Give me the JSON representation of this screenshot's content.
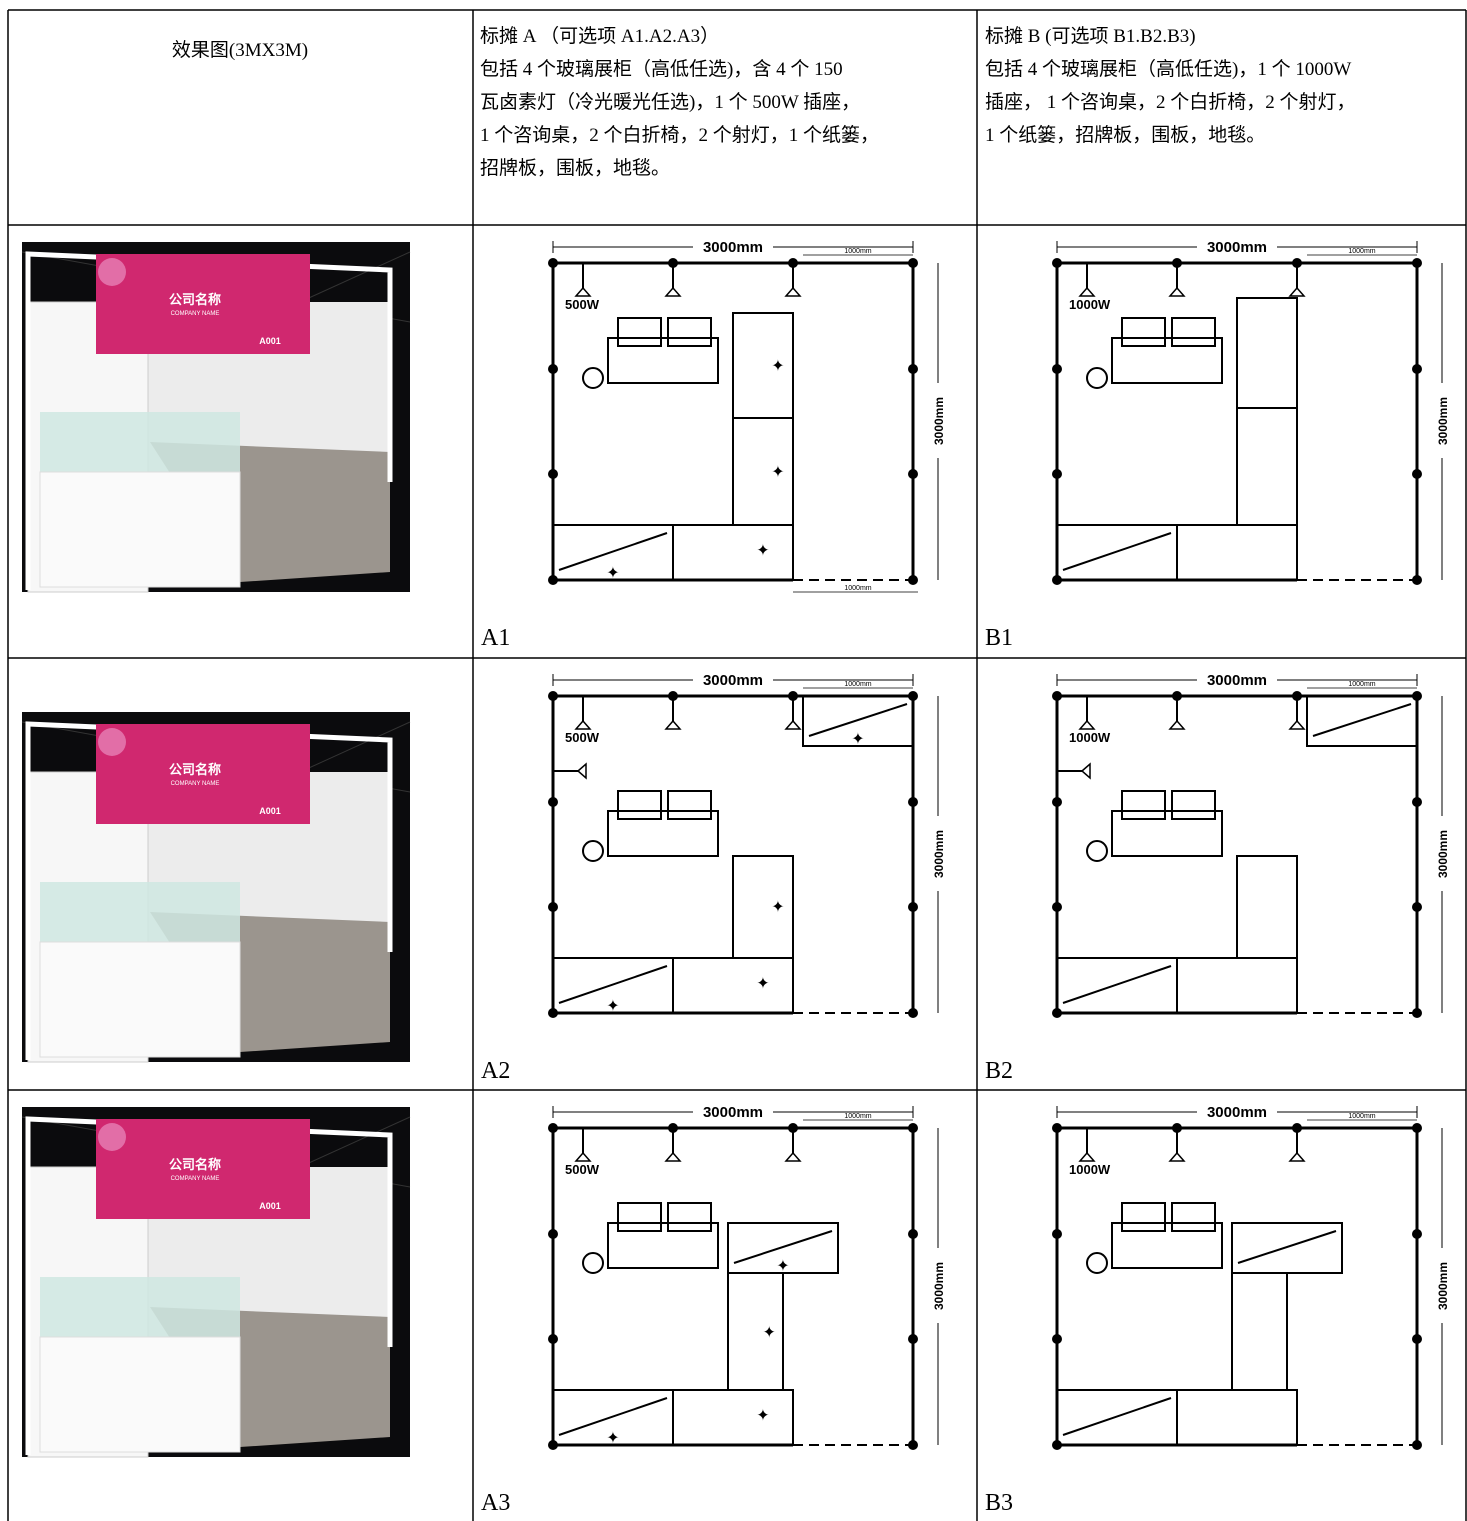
{
  "header": {
    "render": "效果图(3MX3M)",
    "a": {
      "title": "标摊 A （可选项 A1.A2.A3）",
      "lines": [
        "包括 4 个玻璃展柜（高低任选)，含 4 个 150",
        "瓦卤素灯（冷光暖光任选)，1 个 500W 插座，",
        "1 个咨询桌，2 个白折椅，2 个射灯，1 个纸篓，",
        "招牌板，围板，地毯。"
      ]
    },
    "b": {
      "title": "标摊 B (可选项 B1.B2.B3)",
      "lines": [
        "包括 4 个玻璃展柜（高低任选)，1 个 1000W",
        "插座， 1 个咨询桌，2 个白折椅，2 个射灯，",
        "1 个纸篓，招牌板，围板，地毯。"
      ]
    }
  },
  "rows": [
    {
      "render": {
        "sign": [
          "公司名称",
          "COMPANY NAME",
          "A001"
        ]
      },
      "a": {
        "caption": "A1",
        "width": "3000mm",
        "sub": "1000mm",
        "depth": "3000mm",
        "bottom": "1000mm",
        "power": "500W"
      },
      "b": {
        "caption": "B1",
        "width": "3000mm",
        "sub": "1000mm",
        "depth": "3000mm",
        "power": "1000W"
      }
    },
    {
      "render": {
        "sign": [
          "公司名称",
          "COMPANY NAME",
          "A001"
        ]
      },
      "a": {
        "caption": "A2",
        "width": "3000mm",
        "sub": "1000mm",
        "depth": "3000mm",
        "power": "500W"
      },
      "b": {
        "caption": "B2",
        "width": "3000mm",
        "sub": "1000mm",
        "depth": "3000mm",
        "power": "1000W"
      }
    },
    {
      "render": {
        "sign": [
          "公司名称",
          "COMPANY NAME",
          "A001"
        ]
      },
      "a": {
        "caption": "A3",
        "width": "3000mm",
        "sub": "1000mm",
        "depth": "3000mm",
        "power": "500W"
      },
      "b": {
        "caption": "B3",
        "width": "3000mm",
        "sub": "1000mm",
        "depth": "3000mm",
        "power": "1000W"
      }
    }
  ]
}
